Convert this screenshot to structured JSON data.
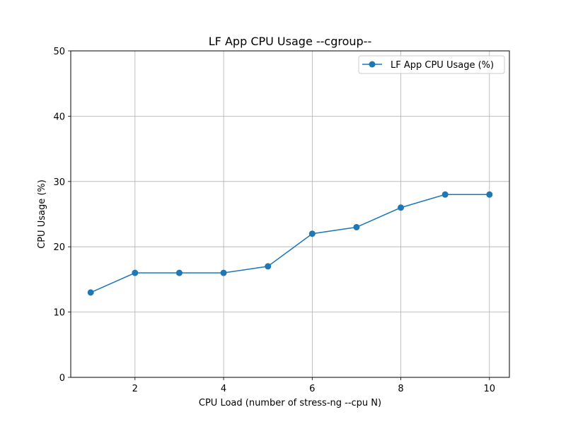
{
  "chart_data": {
    "type": "line",
    "title": "LF App CPU Usage --cgroup--",
    "xlabel": "CPU Load (number of stress-ng --cpu N)",
    "ylabel": "CPU Usage (%)",
    "xlim": [
      0.55,
      10.45
    ],
    "ylim": [
      0,
      50
    ],
    "x_ticks": [
      2,
      4,
      6,
      8,
      10
    ],
    "y_ticks": [
      0,
      10,
      20,
      30,
      40,
      50
    ],
    "grid": true,
    "legend_position": "top-right",
    "series": [
      {
        "name": "LF App CPU Usage (%)",
        "color": "#1f77b4",
        "marker": "circle",
        "x": [
          1,
          2,
          3,
          4,
          5,
          6,
          7,
          8,
          9,
          10
        ],
        "values": [
          13,
          16,
          16,
          16,
          17,
          22,
          23,
          26,
          28,
          28
        ]
      }
    ]
  }
}
